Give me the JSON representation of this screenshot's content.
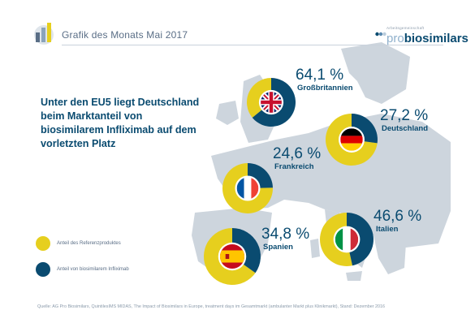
{
  "header": {
    "title": "Grafik des Monats Mai 2017",
    "brand_small": "Arbeitsgemeinschaft",
    "brand_pro": "pro",
    "brand_bio": "biosimilars"
  },
  "headline": "Unter den EU5 liegt Deutschland beim Marktanteil von biosimilarem Infliximab auf dem vorletzten Platz",
  "legend": {
    "reference": "Anteil des Referenzproduktes",
    "biosimilar": "Anteil von biosimilarem Infliximab"
  },
  "source": "Quelle: AG Pro Biosimilars, QuintilesIMS MIDAS, The Impact of Biosimilars in Europe, treatment days im Gesamtmarkt (ambulanter Markt plus Klinikmarkt), Stand: Dezember 2016",
  "colors": {
    "biosimilar": "#0a4b70",
    "reference": "#e6cf1e",
    "map": "#cdd5dd",
    "text": "#0a4b70"
  },
  "chart_data": {
    "type": "pie",
    "series": [
      {
        "name": "Anteil von biosimilarem Infliximab",
        "color": "#0a4b70"
      },
      {
        "name": "Anteil des Referenzproduktes",
        "color": "#e6cf1e"
      }
    ],
    "countries": [
      {
        "country": "Großbritannien",
        "label": "64,1 %",
        "biosimilar": 64.1,
        "reference": 35.9,
        "flag": "uk-flag-icon"
      },
      {
        "country": "Deutschland",
        "label": "27,2 %",
        "biosimilar": 27.2,
        "reference": 72.8,
        "flag": "germany-flag-icon"
      },
      {
        "country": "Frankreich",
        "label": "24,6 %",
        "biosimilar": 24.6,
        "reference": 75.4,
        "flag": "france-flag-icon"
      },
      {
        "country": "Italien",
        "label": "46,6 %",
        "biosimilar": 46.6,
        "reference": 53.4,
        "flag": "italy-flag-icon"
      },
      {
        "country": "Spanien",
        "label": "34,8 %",
        "biosimilar": 34.8,
        "reference": 65.2,
        "flag": "spain-flag-icon"
      }
    ]
  }
}
